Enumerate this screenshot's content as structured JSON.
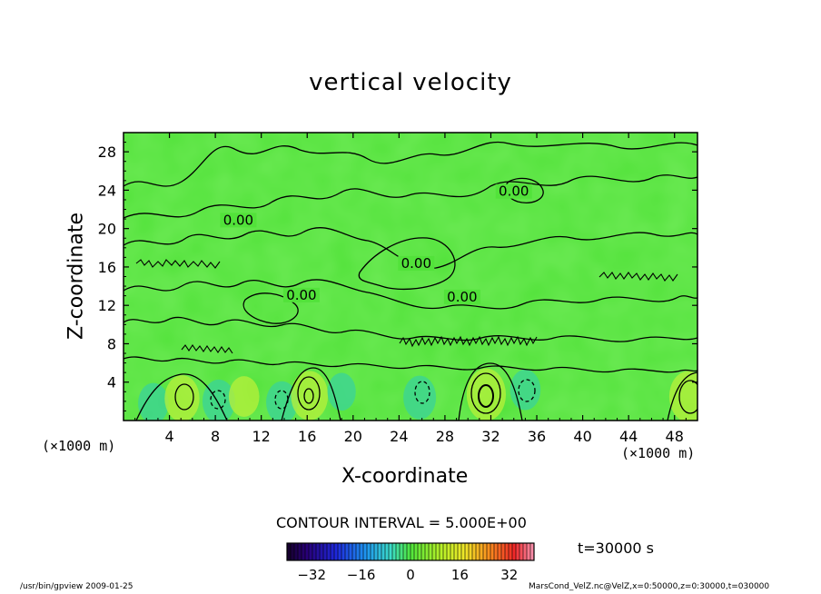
{
  "footer": {
    "left": "/usr/bin/gpview  2009-01-25",
    "right": "MarsCond_VelZ.nc@VelZ,x=0:50000,z=0:30000,t=030000"
  },
  "chart_data": {
    "type": "heatmap",
    "title": "vertical velocity",
    "xlabel": "X-coordinate",
    "ylabel": "Z-coordinate",
    "xunit_left": "(×1000 m)",
    "xunit_right": "(×1000 m)",
    "x_ticks": [
      4,
      8,
      12,
      16,
      20,
      24,
      28,
      32,
      36,
      40,
      44,
      48
    ],
    "y_ticks": [
      4,
      8,
      12,
      16,
      20,
      24,
      28
    ],
    "xlim": [
      0,
      50
    ],
    "ylim": [
      0,
      30
    ],
    "contour_interval_text": "CONTOUR INTERVAL = 5.000E+00",
    "timestamp_text": "t=30000 s",
    "contour_labels": [
      {
        "text": "0.00",
        "x": 34.0,
        "y": 23.5
      },
      {
        "text": "0.00",
        "x": 25.5,
        "y": 16.0
      },
      {
        "text": "0.00",
        "x": 15.5,
        "y": 12.7
      },
      {
        "text": "0.00",
        "x": 10.0,
        "y": 20.5
      },
      {
        "text": "0.00",
        "x": 29.5,
        "y": 12.5
      }
    ],
    "cells": [
      {
        "x": 2.6,
        "z": 1.8,
        "w": -8
      },
      {
        "x": 5.1,
        "z": 2.3,
        "w": 12
      },
      {
        "x": 8.3,
        "z": 2.0,
        "w": -10
      },
      {
        "x": 10.5,
        "z": 2.5,
        "w": 8
      },
      {
        "x": 13.8,
        "z": 1.9,
        "w": -9
      },
      {
        "x": 16.2,
        "z": 2.6,
        "w": 14
      },
      {
        "x": 19.0,
        "z": 3.0,
        "w": -6
      },
      {
        "x": 25.8,
        "z": 2.4,
        "w": -10
      },
      {
        "x": 31.6,
        "z": 2.7,
        "w": 16
      },
      {
        "x": 35.0,
        "z": 3.2,
        "w": -8
      },
      {
        "x": 49.2,
        "z": 2.5,
        "w": 15
      }
    ],
    "colorbar": {
      "min": -40,
      "max": 40,
      "ticks": [
        -32,
        -16,
        0,
        16,
        32
      ],
      "tick_labels": [
        "−32",
        "−16",
        "0",
        "16",
        "32"
      ]
    }
  }
}
